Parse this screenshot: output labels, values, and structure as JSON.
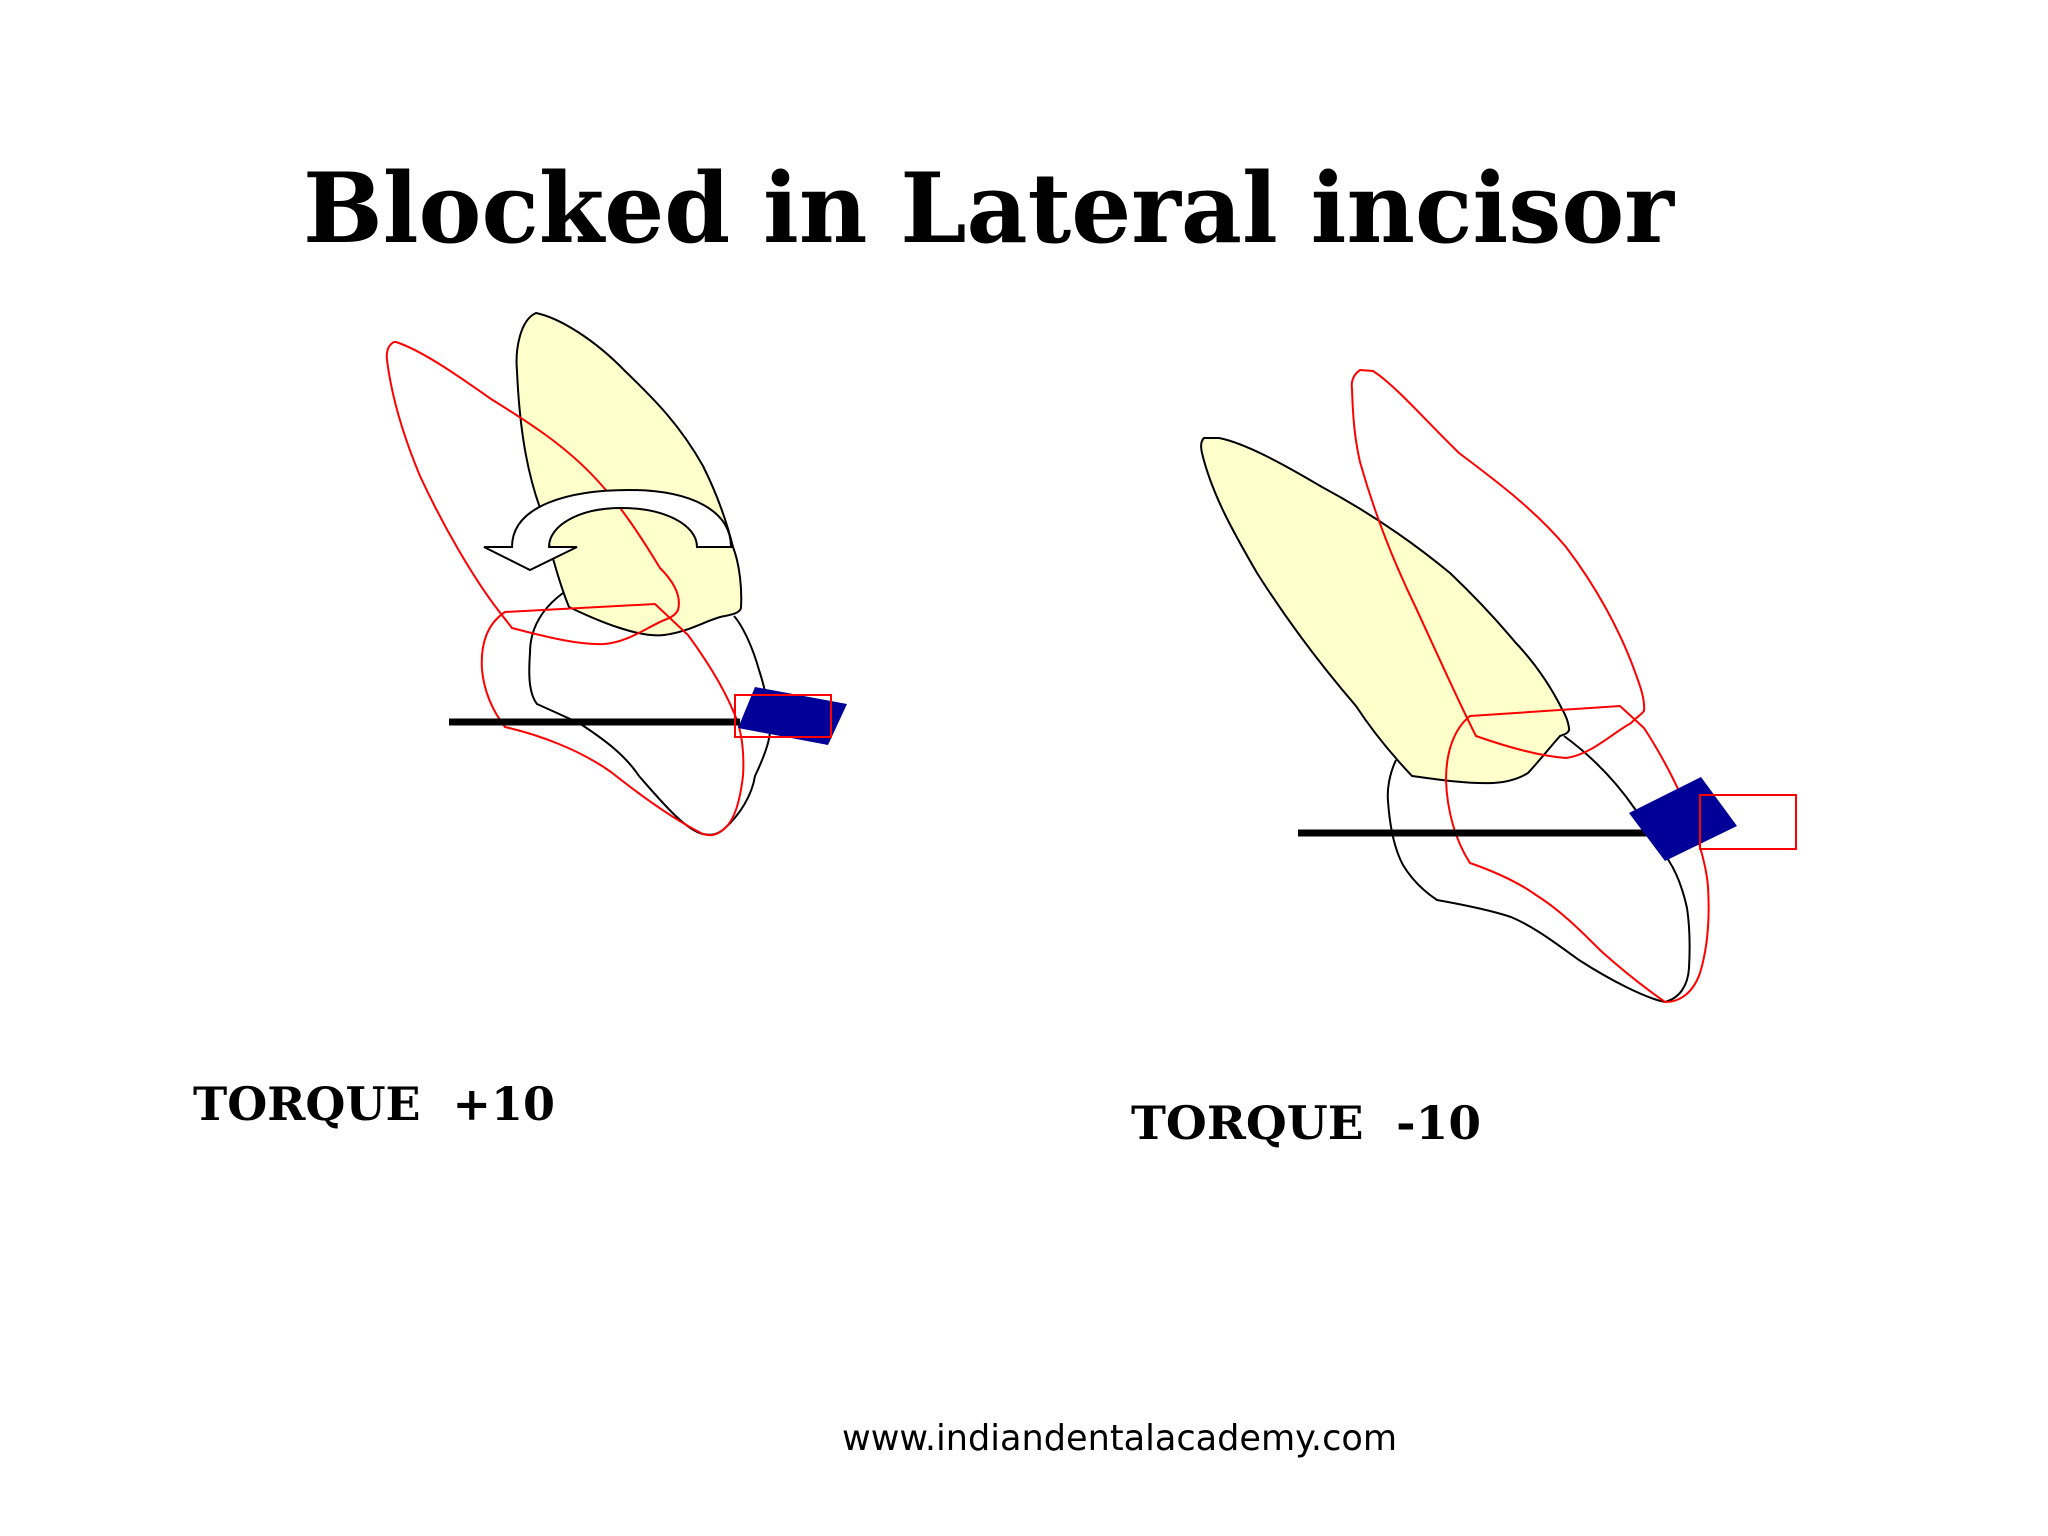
{
  "slide": {
    "title": "Blocked in Lateral incisor",
    "left_label": "TORQUE  +10",
    "right_label": "TORQUE  -10",
    "footer_url": "www.indiandentalacademy.com"
  },
  "colors": {
    "root_fill": "#ffffcc",
    "outline": "#000000",
    "displaced_outline": "#ff0000",
    "bracket": "#000099",
    "background": "#ffffff"
  }
}
